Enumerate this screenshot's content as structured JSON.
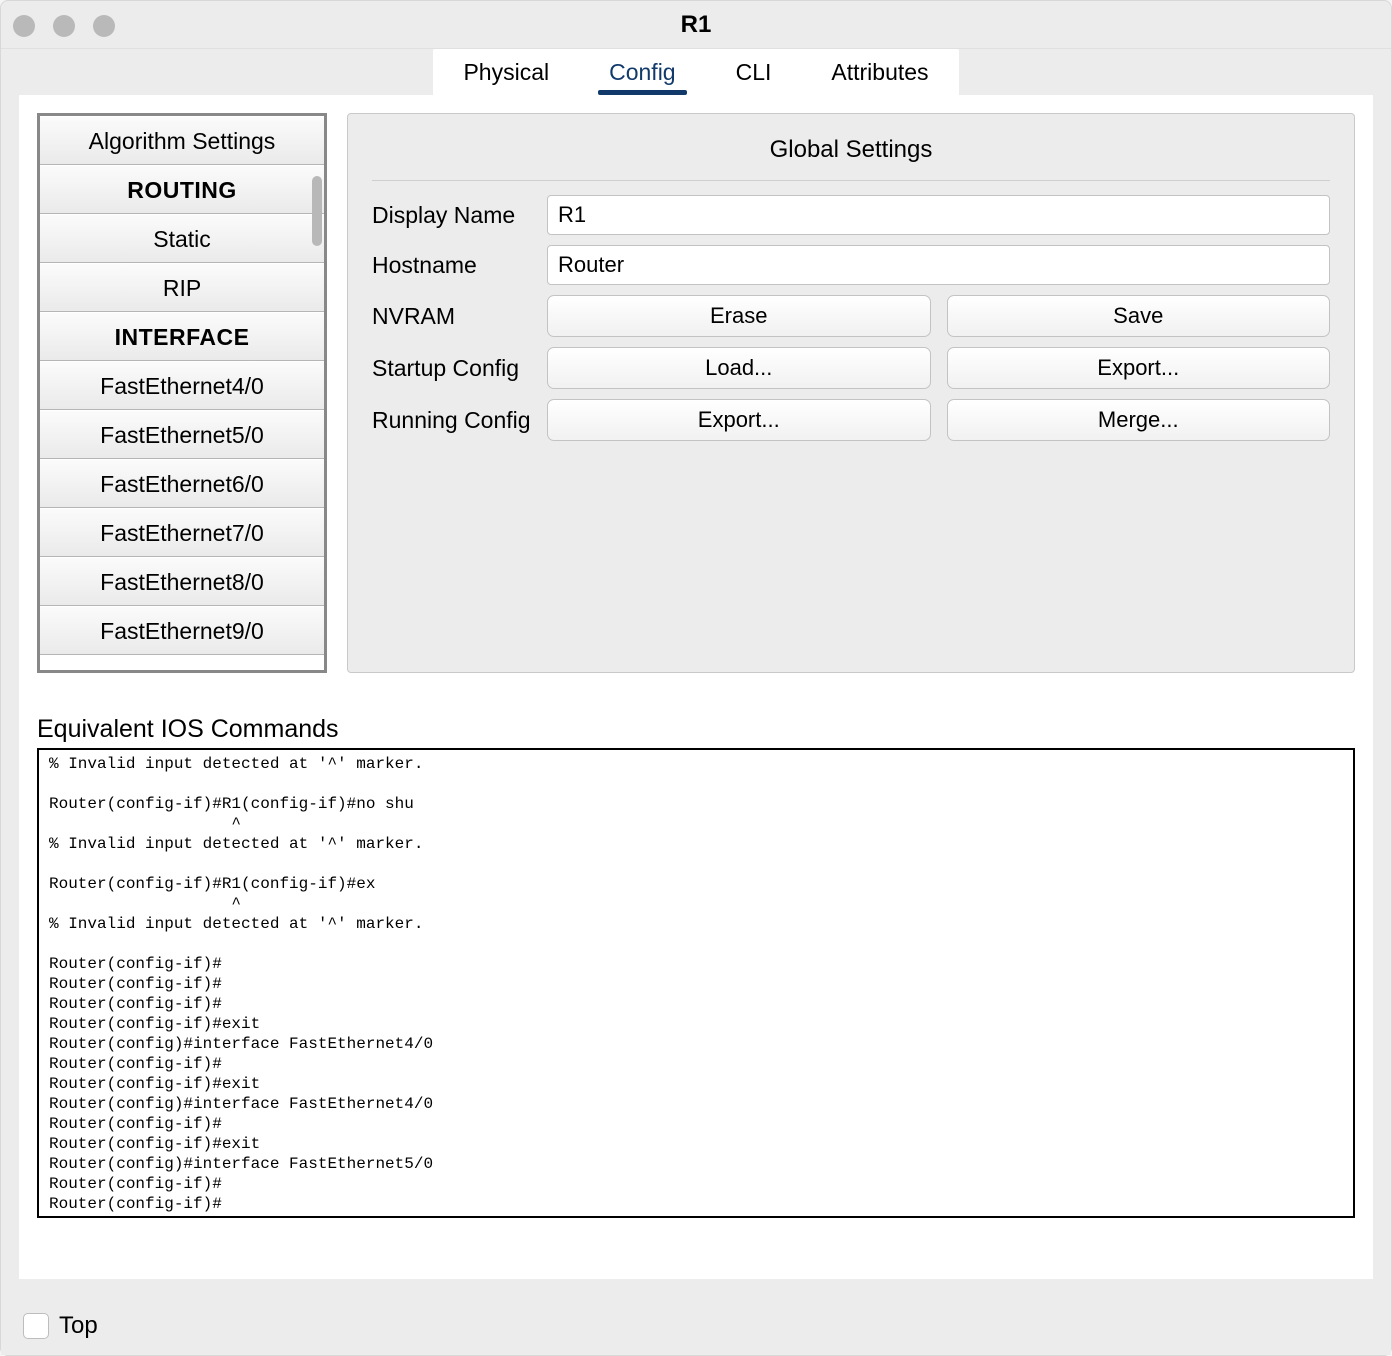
{
  "window": {
    "title": "R1"
  },
  "tabs": {
    "physical": "Physical",
    "config": "Config",
    "cli": "CLI",
    "attributes": "Attributes",
    "active": "config"
  },
  "sidebar": {
    "items": [
      {
        "label": "Algorithm Settings",
        "type": "item"
      },
      {
        "label": "ROUTING",
        "type": "header"
      },
      {
        "label": "Static",
        "type": "item"
      },
      {
        "label": "RIP",
        "type": "item"
      },
      {
        "label": "INTERFACE",
        "type": "header"
      },
      {
        "label": "FastEthernet4/0",
        "type": "item"
      },
      {
        "label": "FastEthernet5/0",
        "type": "item"
      },
      {
        "label": "FastEthernet6/0",
        "type": "item"
      },
      {
        "label": "FastEthernet7/0",
        "type": "item"
      },
      {
        "label": "FastEthernet8/0",
        "type": "item"
      },
      {
        "label": "FastEthernet9/0",
        "type": "item"
      }
    ]
  },
  "settings": {
    "title": "Global Settings",
    "display_name_label": "Display Name",
    "display_name_value": "R1",
    "hostname_label": "Hostname",
    "hostname_value": "Router",
    "nvram_label": "NVRAM",
    "erase_btn": "Erase",
    "save_btn": "Save",
    "startup_label": "Startup Config",
    "load_btn": "Load...",
    "export_startup_btn": "Export...",
    "running_label": "Running Config",
    "export_running_btn": "Export...",
    "merge_btn": "Merge..."
  },
  "ios": {
    "label": "Equivalent IOS Commands",
    "text": "% Invalid input detected at '^' marker.\n\nRouter(config-if)#R1(config-if)#no shu\n                   ^\n% Invalid input detected at '^' marker.\n\nRouter(config-if)#R1(config-if)#ex\n                   ^\n% Invalid input detected at '^' marker.\n\nRouter(config-if)#\nRouter(config-if)#\nRouter(config-if)#\nRouter(config-if)#exit\nRouter(config)#interface FastEthernet4/0\nRouter(config-if)#\nRouter(config-if)#exit\nRouter(config)#interface FastEthernet4/0\nRouter(config-if)#\nRouter(config-if)#exit\nRouter(config)#interface FastEthernet5/0\nRouter(config-if)#\nRouter(config-if)#"
  },
  "footer": {
    "top_label": "Top",
    "top_checked": false
  },
  "colors": {
    "accent": "#113a6b",
    "window_bg": "#ececec",
    "content_bg": "#ffffff",
    "border_gray": "#c3c3c3",
    "traffic_light": "#b9b9b9"
  }
}
